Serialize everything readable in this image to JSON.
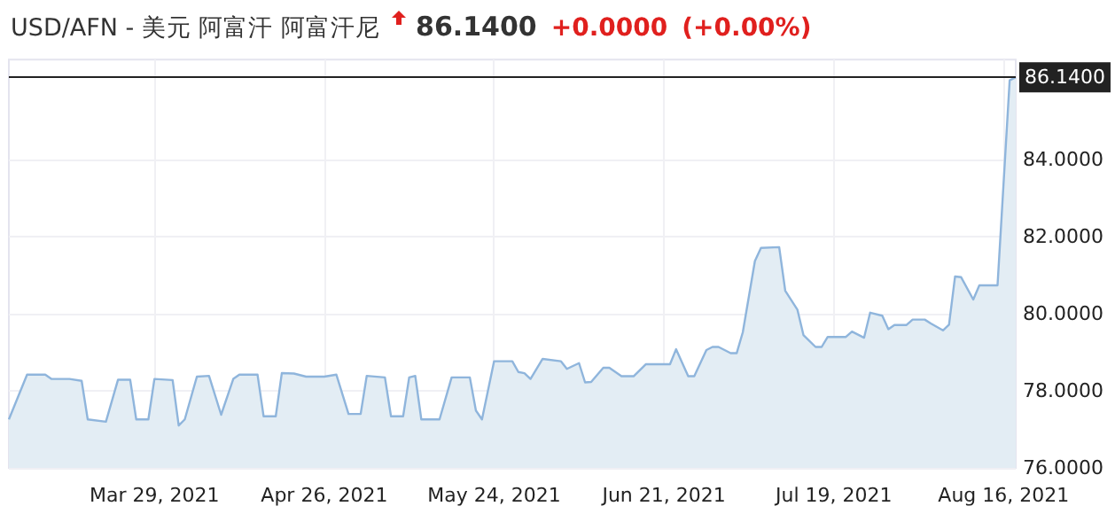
{
  "chart_data": {
    "type": "area",
    "title": "USD/AFN - 美元 阿富汗 阿富汗尼",
    "subtitle": "86.1400",
    "annotations": [
      "+0.0000",
      "(+0.00%)"
    ],
    "x": [
      "2021-03-05",
      "2021-03-08",
      "2021-03-11",
      "2021-03-12",
      "2021-03-15",
      "2021-03-17",
      "2021-03-18",
      "2021-03-21",
      "2021-03-23",
      "2021-03-25",
      "2021-03-26",
      "2021-03-28",
      "2021-03-29",
      "2021-04-01",
      "2021-04-02",
      "2021-04-03",
      "2021-04-05",
      "2021-04-07",
      "2021-04-09",
      "2021-04-11",
      "2021-04-12",
      "2021-04-15",
      "2021-04-16",
      "2021-04-18",
      "2021-04-19",
      "2021-04-21",
      "2021-04-23",
      "2021-04-26",
      "2021-04-28",
      "2021-04-30",
      "2021-05-02",
      "2021-05-03",
      "2021-05-06",
      "2021-05-07",
      "2021-05-09",
      "2021-05-10",
      "2021-05-11",
      "2021-05-12",
      "2021-05-15",
      "2021-05-17",
      "2021-05-20",
      "2021-05-21",
      "2021-05-22",
      "2021-05-24",
      "2021-05-27",
      "2021-05-28",
      "2021-05-29",
      "2021-05-30",
      "2021-06-01",
      "2021-06-04",
      "2021-06-05",
      "2021-06-07",
      "2021-06-08",
      "2021-06-09",
      "2021-06-11",
      "2021-06-12",
      "2021-06-14",
      "2021-06-16",
      "2021-06-18",
      "2021-06-22",
      "2021-06-23",
      "2021-06-25",
      "2021-06-26",
      "2021-06-28",
      "2021-06-29",
      "2021-06-30",
      "2021-07-02",
      "2021-07-03",
      "2021-07-04",
      "2021-07-06",
      "2021-07-07",
      "2021-07-10",
      "2021-07-11",
      "2021-07-13",
      "2021-07-14",
      "2021-07-16",
      "2021-07-17",
      "2021-07-18",
      "2021-07-21",
      "2021-07-22",
      "2021-07-24",
      "2021-07-25",
      "2021-07-27",
      "2021-07-28",
      "2021-07-29",
      "2021-07-31",
      "2021-08-01",
      "2021-08-03",
      "2021-08-04",
      "2021-08-06",
      "2021-08-07",
      "2021-08-08",
      "2021-08-09",
      "2021-08-11",
      "2021-08-12",
      "2021-08-15",
      "2021-08-17",
      "2021-08-18"
    ],
    "series": [
      {
        "color": "#8fb5dc",
        "values": [
          77.26,
          78.42,
          78.42,
          78.31,
          78.31,
          78.26,
          77.26,
          77.2,
          78.29,
          78.29,
          77.26,
          77.26,
          78.31,
          78.28,
          77.1,
          77.26,
          78.37,
          78.39,
          77.38,
          78.31,
          78.42,
          78.42,
          77.34,
          77.34,
          78.46,
          78.45,
          78.37,
          78.37,
          78.42,
          77.4,
          77.4,
          78.39,
          78.35,
          77.34,
          77.34,
          78.35,
          78.39,
          77.26,
          77.26,
          78.35,
          78.35,
          77.49,
          77.26,
          78.77,
          78.77,
          78.49,
          78.46,
          78.31,
          78.83,
          78.77,
          78.57,
          78.72,
          78.22,
          78.23,
          78.6,
          78.6,
          78.38,
          78.38,
          78.69,
          78.69,
          79.08,
          78.38,
          78.38,
          79.06,
          79.14,
          79.14,
          78.98,
          78.98,
          79.52,
          81.37,
          81.71,
          81.73,
          80.6,
          80.11,
          79.45,
          79.14,
          79.14,
          79.4,
          79.4,
          79.54,
          79.38,
          80.03,
          79.95,
          79.6,
          79.71,
          79.71,
          79.85,
          79.85,
          79.75,
          79.57,
          79.72,
          80.97,
          80.95,
          80.37,
          80.74,
          80.74,
          86.06,
          86.14
        ]
      }
    ],
    "xlim": [
      "2021-03-05",
      "2021-08-18"
    ],
    "xticks": [
      {
        "value": "2021-03-29",
        "label": "Mar 29, 2021"
      },
      {
        "value": "2021-04-26",
        "label": "Apr 26, 2021"
      },
      {
        "value": "2021-05-24",
        "label": "May 24, 2021"
      },
      {
        "value": "2021-06-21",
        "label": "Jun 21, 2021"
      },
      {
        "value": "2021-07-19",
        "label": "Jul 19, 2021"
      },
      {
        "value": "2021-08-16",
        "label": "Aug 16, 2021"
      }
    ],
    "ylim": [
      76,
      86.6
    ],
    "yticks": [
      {
        "value": 76,
        "label": "76.0000"
      },
      {
        "value": 78,
        "label": "78.0000"
      },
      {
        "value": 80,
        "label": "80.0000"
      },
      {
        "value": 82,
        "label": "82.0000"
      },
      {
        "value": 84,
        "label": "84.0000"
      }
    ],
    "ref_lines": [
      {
        "axis": "y",
        "value": 86.14,
        "label": "86.1400",
        "color": "#222222"
      }
    ],
    "grid": true,
    "marker": "none",
    "line_style": "solid"
  }
}
